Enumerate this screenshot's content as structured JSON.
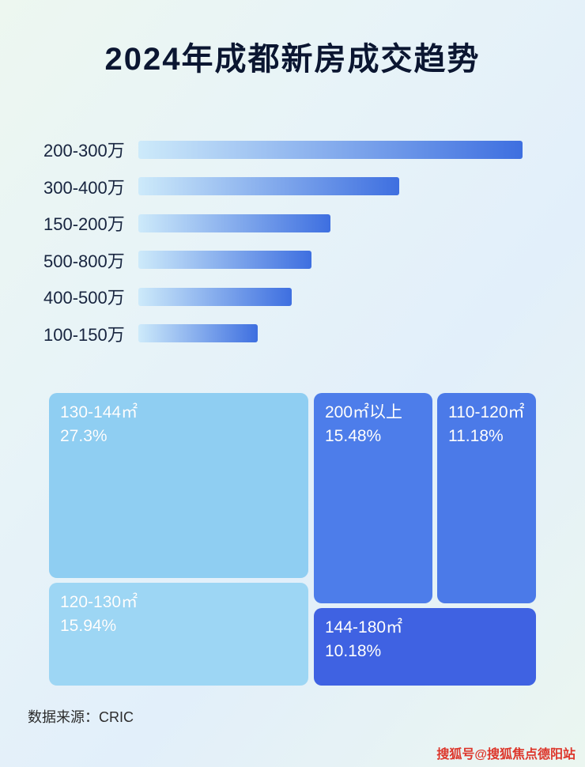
{
  "page": {
    "title": "2024年成都新房成交趋势",
    "source": "数据来源：CRIC",
    "watermark": "搜狐号@搜狐焦点德阳站"
  },
  "colors": {
    "bar_gradient_start": "#cdeafa",
    "bar_gradient_end": "#3e6fe0",
    "title_text": "#0b1631",
    "watermark_red": "#dd362b"
  },
  "chart_data": [
    {
      "type": "bar",
      "orientation": "horizontal",
      "title": "2024年成都新房成交趋势",
      "categories": [
        "200-300万",
        "300-400万",
        "150-200万",
        "500-800万",
        "400-500万",
        "100-150万"
      ],
      "values": [
        100,
        68,
        50,
        45,
        40,
        31
      ],
      "values_note": "no numeric data labels shown; values are bar lengths relative to longest bar (percent)",
      "xlabel": "",
      "ylabel": "",
      "grid": false,
      "legend": false
    },
    {
      "type": "treemap",
      "title": "",
      "items": [
        {
          "label": "130-144㎡",
          "value": 27.3,
          "value_label": "27.3%",
          "color": "#8fcef2"
        },
        {
          "label": "120-130㎡",
          "value": 15.94,
          "value_label": "15.94%",
          "color": "#9dd6f4"
        },
        {
          "label": "200㎡以上",
          "value": 15.48,
          "value_label": "15.48%",
          "color": "#4d7dea"
        },
        {
          "label": "110-120㎡",
          "value": 11.18,
          "value_label": "11.18%",
          "color": "#4b7ae8"
        },
        {
          "label": "144-180㎡",
          "value": 10.18,
          "value_label": "10.18%",
          "color": "#3f62e2"
        }
      ]
    }
  ]
}
